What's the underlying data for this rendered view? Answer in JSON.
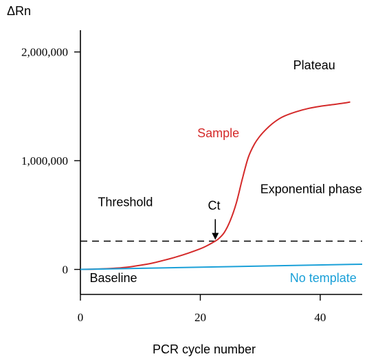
{
  "chart_data": {
    "type": "line",
    "title": "",
    "xlabel": "PCR cycle number",
    "ylabel": "ΔRn",
    "xlim": [
      0,
      47
    ],
    "ylim": [
      -230000,
      2200000
    ],
    "xticks": [
      {
        "value": 0,
        "label": "0"
      },
      {
        "value": 20,
        "label": "20"
      },
      {
        "value": 40,
        "label": "40"
      }
    ],
    "yticks": [
      {
        "value": 0,
        "label": "0"
      },
      {
        "value": 1000000,
        "label": "1,000,000"
      },
      {
        "value": 2000000,
        "label": "2,000,000"
      }
    ],
    "threshold": 260000,
    "ct": 22.5,
    "series": [
      {
        "name": "Sample",
        "color": "#d42a2a",
        "x": [
          0,
          2,
          4,
          6,
          8,
          10,
          12,
          14,
          16,
          18,
          20,
          21,
          22,
          23,
          24,
          25,
          26,
          27,
          28,
          29,
          30,
          31,
          32,
          33,
          34,
          36,
          38,
          40,
          42,
          44,
          45
        ],
        "y": [
          0,
          2000,
          6000,
          12000,
          22000,
          38000,
          58000,
          85000,
          115000,
          150000,
          190000,
          215000,
          245000,
          280000,
          340000,
          450000,
          610000,
          830000,
          1030000,
          1150000,
          1230000,
          1290000,
          1340000,
          1380000,
          1410000,
          1450000,
          1480000,
          1500000,
          1515000,
          1530000,
          1540000
        ]
      },
      {
        "name": "No template",
        "color": "#1aa0d8",
        "x": [
          0,
          47
        ],
        "y": [
          0,
          48000
        ]
      }
    ],
    "annotations": [
      {
        "text": "Plateau",
        "x": 39,
        "y": 1840000,
        "color": "#000000"
      },
      {
        "text": "Sample",
        "x": 23,
        "y": 1215000,
        "color": "#d42a2a"
      },
      {
        "text": "Exponential phase",
        "x": 38.5,
        "y": 700000,
        "color": "#000000"
      },
      {
        "text": "Threshold",
        "x": 7.5,
        "y": 580000,
        "color": "#000000"
      },
      {
        "text": "Ct",
        "x": 22.3,
        "y": 550000,
        "color": "#000000"
      },
      {
        "text": "Baseline",
        "x": 5.5,
        "y": -115000,
        "color": "#000000"
      },
      {
        "text": "No template",
        "x": 40.5,
        "y": -115000,
        "color": "#1aa0d8"
      }
    ]
  }
}
